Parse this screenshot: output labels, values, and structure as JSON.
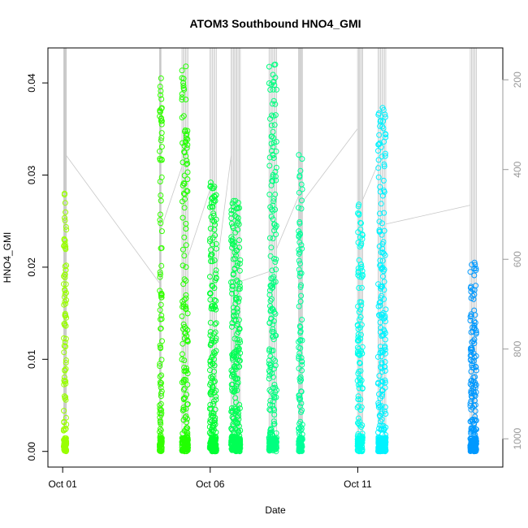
{
  "chart_data": {
    "type": "scatter",
    "title": "ATOM3 Southbound HNO4_GMI",
    "xlabel": "Date",
    "ylabel": "HNO4_GMI",
    "xlim": [
      "2017-09-30T12:00",
      "2017-10-15T22:00"
    ],
    "ylim": [
      -0.0017,
      0.0438
    ],
    "x_ticks": [
      {
        "label": "Oct 01",
        "date": "2017-10-01"
      },
      {
        "label": "Oct 06",
        "date": "2017-10-06"
      },
      {
        "label": "Oct 11",
        "date": "2017-10-11"
      }
    ],
    "y_ticks": [
      0.0,
      0.01,
      0.02,
      0.03,
      0.04
    ],
    "y_tick_labels": [
      "0.00",
      "0.01",
      "0.02",
      "0.03",
      "0.04"
    ],
    "right_axis": {
      "quantity": "pressure",
      "reversed": true,
      "lim": [
        1063,
        129
      ],
      "ticks": [
        200,
        400,
        600,
        800,
        1000
      ],
      "tick_labels": [
        "200",
        "400",
        "600",
        "800",
        "1000"
      ],
      "color": "#999999"
    },
    "marker": "open-circle",
    "grid": false,
    "legend": "none",
    "flights": [
      {
        "start": "2017-10-01T00:50",
        "end": "2017-10-01T03:00",
        "ymin": 0.0,
        "ymax": 0.028,
        "color": "#99ff00"
      },
      {
        "start": "2017-10-04T06:50",
        "end": "2017-10-04T08:00",
        "ymin": 0.0,
        "ymax": 0.0405,
        "color": "#33ff00"
      },
      {
        "start": "2017-10-05T01:00",
        "end": "2017-10-05T06:00",
        "ymin": 0.0,
        "ymax": 0.0418,
        "color": "#22ff00"
      },
      {
        "start": "2017-10-05T23:40",
        "end": "2017-10-06T05:00",
        "ymin": 0.0,
        "ymax": 0.0292,
        "color": "#00ff33"
      },
      {
        "start": "2017-10-06T17:00",
        "end": "2017-10-07T00:30",
        "ymin": 0.0,
        "ymax": 0.0272,
        "color": "#00ff55"
      },
      {
        "start": "2017-10-07T23:50",
        "end": "2017-10-08T06:00",
        "ymin": 0.0,
        "ymax": 0.042,
        "color": "#00ff80"
      },
      {
        "start": "2017-10-08T23:50",
        "end": "2017-10-09T03:00",
        "ymin": 0.0,
        "ymax": 0.0322,
        "color": "#00ff99"
      },
      {
        "start": "2017-10-10T23:50",
        "end": "2017-10-11T04:00",
        "ymin": 0.0,
        "ymax": 0.0268,
        "color": "#00ffee"
      },
      {
        "start": "2017-10-11T16:30",
        "end": "2017-10-11T22:50",
        "ymin": 0.0,
        "ymax": 0.0373,
        "color": "#00f2ff"
      },
      {
        "start": "2017-10-14T19:30",
        "end": "2017-10-15T00:30",
        "ymin": 0.0,
        "ymax": 0.0205,
        "color": "#0099ff"
      }
    ]
  }
}
